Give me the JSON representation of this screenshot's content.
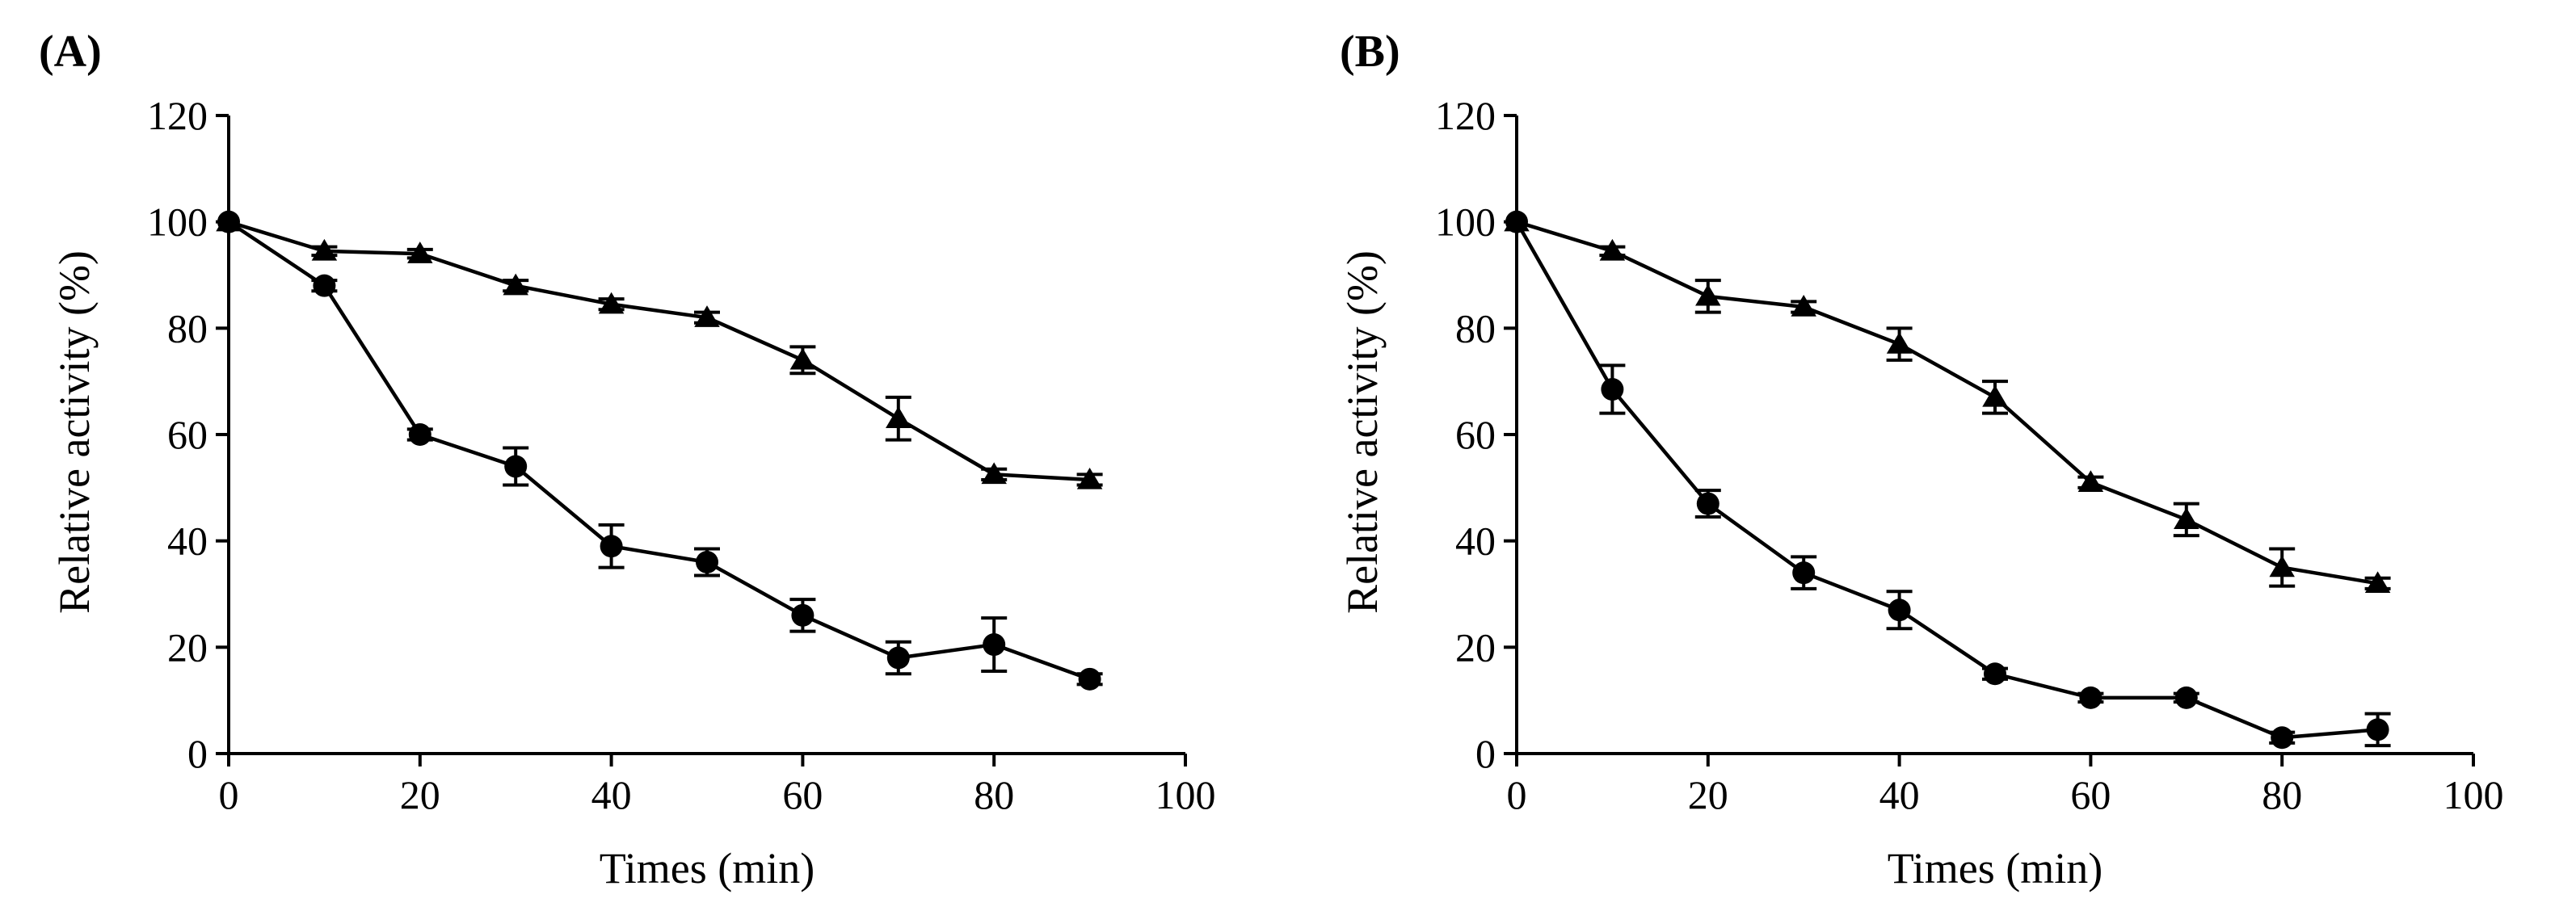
{
  "chart_data": [
    {
      "type": "line",
      "panel_label": "(A)",
      "xlabel": "Times (min)",
      "ylabel": "Relative activity (%)",
      "xlim": [
        0,
        100
      ],
      "ylim": [
        0,
        120
      ],
      "xticks": [
        "0",
        "20",
        "40",
        "60",
        "80",
        "100"
      ],
      "yticks": [
        "0",
        "20",
        "40",
        "60",
        "80",
        "100",
        "120"
      ],
      "grid": false,
      "series": [
        {
          "name": "triangle series",
          "marker": "triangle",
          "x": [
            0,
            10,
            20,
            30,
            40,
            50,
            60,
            70,
            80,
            90
          ],
          "y": [
            100,
            94.5,
            94,
            88,
            84.5,
            82,
            74,
            63,
            52.5,
            51.5
          ],
          "err": [
            0,
            0.8,
            0.8,
            1,
            1,
            1,
            2.5,
            4,
            1,
            1
          ]
        },
        {
          "name": "circle series",
          "marker": "circle",
          "x": [
            0,
            10,
            20,
            30,
            40,
            50,
            60,
            70,
            80,
            90
          ],
          "y": [
            100,
            88,
            60,
            54,
            39,
            36,
            26,
            18,
            20.5,
            14
          ],
          "err": [
            0,
            1,
            1,
            3.5,
            4,
            2.5,
            3,
            3,
            5,
            1
          ]
        }
      ]
    },
    {
      "type": "line",
      "panel_label": "(B)",
      "xlabel": "Times (min)",
      "ylabel": "Relative activity (%)",
      "xlim": [
        0,
        100
      ],
      "ylim": [
        0,
        120
      ],
      "xticks": [
        "0",
        "20",
        "40",
        "60",
        "80",
        "100"
      ],
      "yticks": [
        "0",
        "20",
        "40",
        "60",
        "80",
        "100",
        "120"
      ],
      "grid": false,
      "series": [
        {
          "name": "triangle series",
          "marker": "triangle",
          "x": [
            0,
            10,
            20,
            30,
            40,
            50,
            60,
            70,
            80,
            90
          ],
          "y": [
            100,
            94.5,
            86,
            84,
            77,
            67,
            51,
            44,
            35,
            32
          ],
          "err": [
            0,
            0.8,
            3,
            1,
            3,
            3,
            1,
            3,
            3.5,
            1
          ]
        },
        {
          "name": "circle series",
          "marker": "circle",
          "x": [
            0,
            10,
            20,
            30,
            40,
            50,
            60,
            70,
            80,
            90
          ],
          "y": [
            100,
            68.5,
            47,
            34,
            27,
            15,
            10.5,
            10.5,
            3,
            4.5
          ],
          "err": [
            0,
            4.5,
            2.5,
            3,
            3.5,
            1,
            0.8,
            0.8,
            1,
            3
          ]
        }
      ]
    }
  ]
}
